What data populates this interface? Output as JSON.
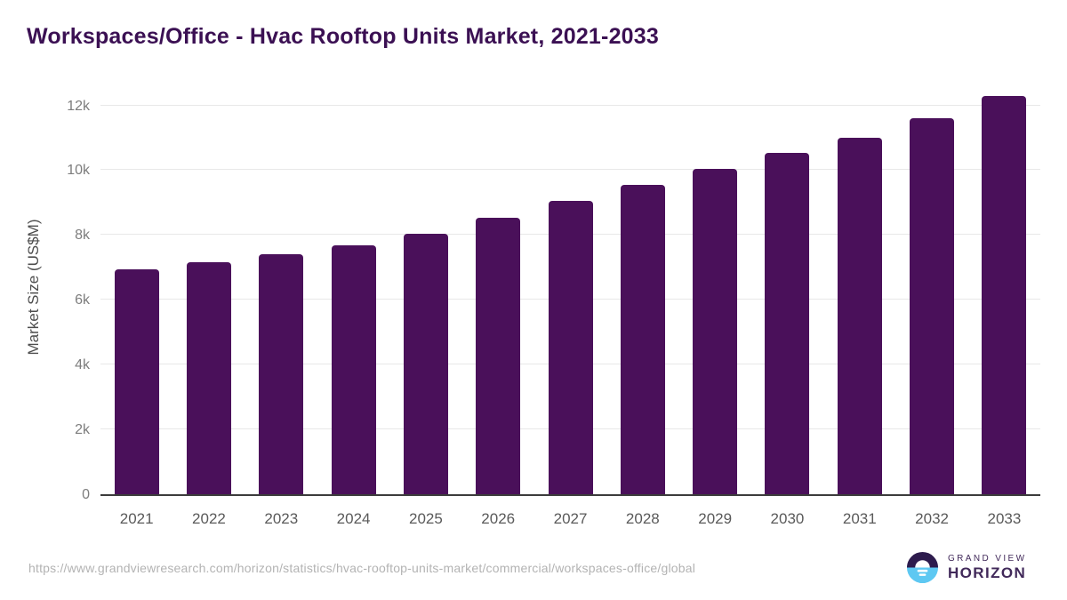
{
  "page": {
    "title": "Workspaces/Office - Hvac Rooftop Units Market, 2021-2033"
  },
  "chart_data": {
    "type": "bar",
    "title": "Workspaces/Office - Hvac Rooftop Units Market, 2021-2033",
    "categories": [
      "2021",
      "2022",
      "2023",
      "2024",
      "2025",
      "2026",
      "2027",
      "2028",
      "2029",
      "2030",
      "2031",
      "2032",
      "2033"
    ],
    "values": [
      6930,
      7170,
      7400,
      7690,
      8050,
      8530,
      9050,
      9550,
      10030,
      10540,
      11010,
      11610,
      12280
    ],
    "xlabel": "",
    "ylabel": "Market Size (US$M)",
    "ylim": [
      0,
      12000
    ],
    "yticks": [
      0,
      2000,
      4000,
      6000,
      8000,
      10000,
      12000
    ],
    "ytick_labels": [
      "0",
      "2k",
      "4k",
      "6k",
      "8k",
      "10k",
      "12k"
    ],
    "grid": true,
    "legend": false,
    "bar_color": "#4a105a"
  },
  "footer": {
    "source_url": "https://www.grandviewresearch.com/horizon/statistics/hvac-rooftop-units-market/commercial/workspaces-office/global",
    "logo_line1": "GRAND VIEW",
    "logo_line2": "HORIZON"
  },
  "colors": {
    "title": "#3b1053",
    "bar": "#4a105a",
    "grid": "#e8e8e8",
    "axis": "#3c3c3c",
    "tick_label": "#7d7d7d",
    "x_label": "#5a5a5a",
    "y_axis_title": "#4d4d4d",
    "url": "#b3b3b3",
    "logo_dark": "#2d1b4d",
    "logo_blue": "#5ec8f2",
    "logo_text": "#41295a"
  }
}
